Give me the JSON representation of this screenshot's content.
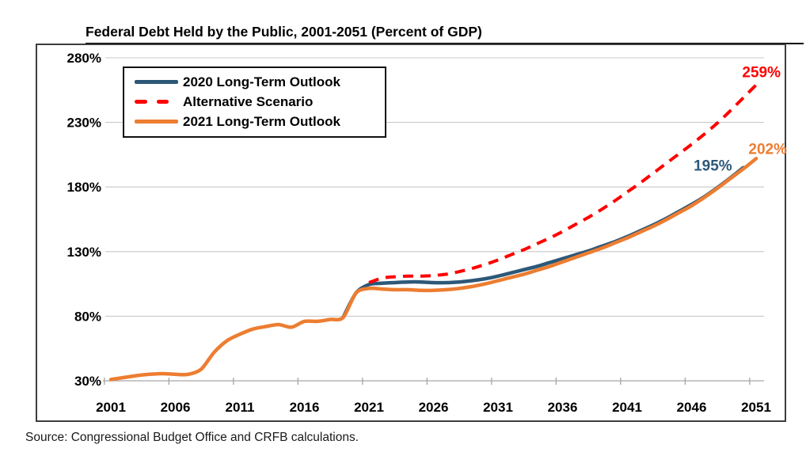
{
  "header": {
    "title": "Federal Debt Held by the Public, 2001-2051 (Percent of GDP)"
  },
  "source_note": "Source: Congressional Budget Office and CRFB calculations.",
  "colors": {
    "blue": "#2C5878",
    "red": "#FF0000",
    "orange": "#ED7D31",
    "gridline": "#C9C9C9",
    "axis": "#A6A6A6",
    "frame": "#3d3d3d",
    "text": "#000000"
  },
  "chart_data": {
    "type": "line",
    "title": "Federal Debt Held by the Public, 2001-2051 (Percent of GDP)",
    "xlabel": "",
    "ylabel": "Percent of GDP",
    "xlim": [
      2001,
      2051
    ],
    "ylim": [
      30,
      280
    ],
    "x_ticks": [
      2001,
      2006,
      2011,
      2016,
      2021,
      2026,
      2031,
      2036,
      2041,
      2046,
      2051
    ],
    "y_ticks": [
      30,
      80,
      130,
      180,
      230,
      280
    ],
    "y_tick_labels": [
      "30%",
      "80%",
      "130%",
      "180%",
      "230%",
      "280%"
    ],
    "grid": "horizontal-only",
    "legend_position": "top-left",
    "series": [
      {
        "name": "2020 Long-Term Outlook",
        "color": "#2C5878",
        "style": "solid",
        "end_label": "195%",
        "points": [
          [
            2019,
            79
          ],
          [
            2020,
            98
          ],
          [
            2021,
            104.5
          ],
          [
            2022,
            105.5
          ],
          [
            2023,
            106
          ],
          [
            2024,
            106.5
          ],
          [
            2025,
            106.5
          ],
          [
            2026,
            106
          ],
          [
            2027,
            106
          ],
          [
            2028,
            106.5
          ],
          [
            2029,
            107.5
          ],
          [
            2030,
            109
          ],
          [
            2031,
            111
          ],
          [
            2032,
            113.5
          ],
          [
            2033,
            116
          ],
          [
            2034,
            118.5
          ],
          [
            2035,
            121.5
          ],
          [
            2036,
            124.5
          ],
          [
            2037,
            127.5
          ],
          [
            2038,
            130.5
          ],
          [
            2039,
            134
          ],
          [
            2040,
            137.5
          ],
          [
            2041,
            141.5
          ],
          [
            2042,
            146
          ],
          [
            2043,
            150.5
          ],
          [
            2044,
            155.5
          ],
          [
            2045,
            161
          ],
          [
            2046,
            166.5
          ],
          [
            2047,
            172.5
          ],
          [
            2048,
            179.5
          ],
          [
            2049,
            187
          ],
          [
            2050,
            195
          ]
        ]
      },
      {
        "name": "Alternative Scenario",
        "color": "#FF0000",
        "style": "dashed",
        "end_label": "259%",
        "points": [
          [
            2021,
            106
          ],
          [
            2022,
            109.5
          ],
          [
            2023,
            110.5
          ],
          [
            2024,
            111
          ],
          [
            2025,
            111
          ],
          [
            2026,
            111.5
          ],
          [
            2027,
            112.5
          ],
          [
            2028,
            114.5
          ],
          [
            2029,
            117
          ],
          [
            2030,
            120
          ],
          [
            2031,
            123.5
          ],
          [
            2032,
            127.5
          ],
          [
            2033,
            131.5
          ],
          [
            2034,
            136
          ],
          [
            2035,
            140.5
          ],
          [
            2036,
            145.5
          ],
          [
            2037,
            151
          ],
          [
            2038,
            156.5
          ],
          [
            2039,
            162.5
          ],
          [
            2040,
            169
          ],
          [
            2041,
            176
          ],
          [
            2042,
            183
          ],
          [
            2043,
            190.5
          ],
          [
            2044,
            198
          ],
          [
            2045,
            205.5
          ],
          [
            2046,
            213
          ],
          [
            2047,
            221
          ],
          [
            2048,
            229.5
          ],
          [
            2049,
            239
          ],
          [
            2050,
            249
          ],
          [
            2051,
            259
          ]
        ]
      },
      {
        "name": "2021 Long-Term Outlook",
        "color": "#ED7D31",
        "style": "solid",
        "end_label": "202%",
        "points": [
          [
            2001,
            31
          ],
          [
            2002,
            32.5
          ],
          [
            2003,
            34
          ],
          [
            2004,
            35
          ],
          [
            2005,
            35.5
          ],
          [
            2006,
            35
          ],
          [
            2007,
            35
          ],
          [
            2008,
            39
          ],
          [
            2009,
            52
          ],
          [
            2010,
            61
          ],
          [
            2011,
            66
          ],
          [
            2012,
            70
          ],
          [
            2013,
            72
          ],
          [
            2014,
            73.5
          ],
          [
            2015,
            71.5
          ],
          [
            2016,
            76
          ],
          [
            2017,
            76
          ],
          [
            2018,
            77.5
          ],
          [
            2019,
            79
          ],
          [
            2020,
            98
          ],
          [
            2021,
            101.5
          ],
          [
            2022,
            101
          ],
          [
            2023,
            100.5
          ],
          [
            2024,
            100.5
          ],
          [
            2025,
            100
          ],
          [
            2026,
            100
          ],
          [
            2027,
            100.5
          ],
          [
            2028,
            101.5
          ],
          [
            2029,
            103
          ],
          [
            2030,
            105
          ],
          [
            2031,
            107.5
          ],
          [
            2032,
            110
          ],
          [
            2033,
            112.5
          ],
          [
            2034,
            115.5
          ],
          [
            2035,
            118.5
          ],
          [
            2036,
            122
          ],
          [
            2037,
            125.5
          ],
          [
            2038,
            129
          ],
          [
            2039,
            132.5
          ],
          [
            2040,
            136.5
          ],
          [
            2041,
            140.5
          ],
          [
            2042,
            145
          ],
          [
            2043,
            149.5
          ],
          [
            2044,
            154.5
          ],
          [
            2045,
            160
          ],
          [
            2046,
            165.5
          ],
          [
            2047,
            172
          ],
          [
            2048,
            179
          ],
          [
            2049,
            186.5
          ],
          [
            2050,
            194
          ],
          [
            2051,
            202
          ]
        ]
      }
    ]
  }
}
